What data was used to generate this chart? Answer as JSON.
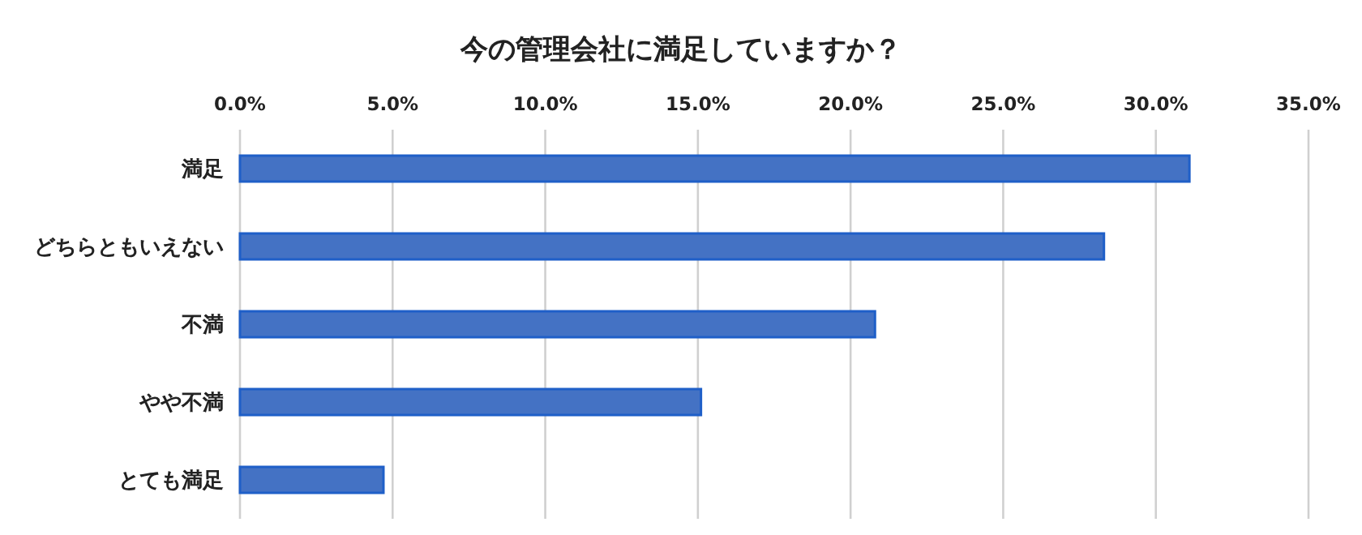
{
  "chart_data": {
    "type": "bar",
    "orientation": "horizontal",
    "title": "今の管理会社に満足していますか？",
    "categories": [
      "満足",
      "どちらともいえない",
      "不満",
      "やや不満",
      "とても満足"
    ],
    "values": [
      31.1,
      28.3,
      20.8,
      15.1,
      4.7
    ],
    "color": "#4472c4",
    "xlim": [
      0,
      35
    ],
    "xticks": [
      {
        "value": 0,
        "label": "0.0%"
      },
      {
        "value": 5,
        "label": "5.0%"
      },
      {
        "value": 10,
        "label": "10.0%"
      },
      {
        "value": 15,
        "label": "15.0%"
      },
      {
        "value": 20,
        "label": "20.0%"
      },
      {
        "value": 25,
        "label": "25.0%"
      },
      {
        "value": 30,
        "label": "30.0%"
      },
      {
        "value": 35,
        "label": "35.0%"
      }
    ],
    "grid": "x"
  }
}
